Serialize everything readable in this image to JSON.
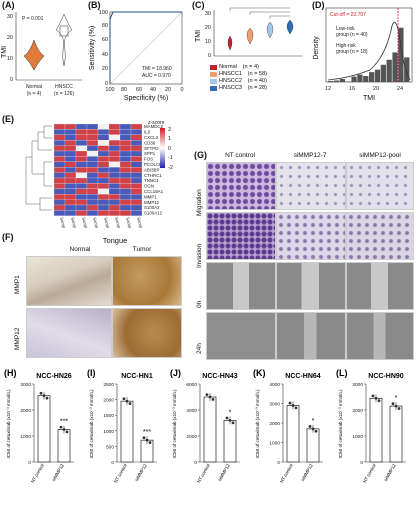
{
  "panels": {
    "A": {
      "label": "(A)",
      "ylabel": "TMI",
      "pvalue": "P = 0.001",
      "groups": [
        "Normal",
        "HNSCC"
      ],
      "n_labels": [
        "(n = 4)",
        "(n = 126)"
      ],
      "yticks": [
        "0",
        "10",
        "20",
        "30"
      ],
      "colors": {
        "normal": "#e07b3a",
        "hnscc": "#ffffff"
      }
    },
    "B": {
      "label": "(B)",
      "xlabel": "Specificity (%)",
      "ylabel": "Sensitivity (%)",
      "tmi_text": "TMI = 18.960",
      "auc_text": "AUC = 0.970",
      "xticks": [
        "100",
        "80",
        "60",
        "40",
        "20",
        "0"
      ],
      "yticks": [
        "0",
        "20",
        "40",
        "60",
        "80",
        "100"
      ]
    },
    "C": {
      "label": "(C)",
      "ylabel": "TMI",
      "yticks": [
        "0",
        "10",
        "20",
        "30"
      ],
      "legend": [
        {
          "name": "Normal",
          "n": "(n = 4)",
          "color": "#c0202a"
        },
        {
          "name": "HNSCC1",
          "n": "(n = 58)",
          "color": "#f0a070"
        },
        {
          "name": "HNSCC2",
          "n": "(n = 40)",
          "color": "#a6c8e8"
        },
        {
          "name": "HNSCC3",
          "n": "(n = 28)",
          "color": "#2e6db4"
        }
      ]
    },
    "D": {
      "label": "(D)",
      "xlabel": "TMI",
      "ylabel": "Density",
      "cutoff": "Cut-off = 23.707",
      "low": "Low-risk",
      "low_n": "group (n = 40)",
      "high": "High-risk",
      "high_n": "group (n = 18)",
      "xticks": [
        "12",
        "16",
        "20",
        "24"
      ]
    },
    "E": {
      "label": "(E)",
      "zscore": "z-score",
      "zticks": [
        "2",
        "1",
        "0",
        "-1",
        "-2"
      ],
      "genes": [
        "MAMDC2",
        "IL6",
        "CXCL2",
        "CD36",
        "SFTPD",
        "SPP1",
        "FOS",
        "PCOLCE2",
        "ABI3BP",
        "CTHRC1",
        "TNNC1",
        "OGN",
        "CCL19A1",
        "MMP1",
        "MMP12",
        "S100A2",
        "S100A12"
      ],
      "samples": [
        "Sample1",
        "Sample2",
        "Sample3",
        "Sample4",
        "Sample5",
        "Sample6",
        "Sample7",
        "Sample8"
      ]
    },
    "F": {
      "label": "(F)",
      "title": "Tongue",
      "cols": [
        "Normal",
        "Tumor"
      ],
      "rows": [
        "MMP1",
        "MMP12"
      ]
    },
    "G": {
      "label": "(G)",
      "cols": [
        "NT control",
        "siMMP12-7",
        "siMMP12-pool"
      ],
      "rows": [
        "Migration",
        "Invasion",
        "0h",
        "24h"
      ]
    },
    "H": {
      "label": "(H)",
      "title": "NCC-HN26",
      "sig": "***",
      "yticks": [
        "0",
        "1000",
        "2000",
        "3000"
      ]
    },
    "I": {
      "label": "(I)",
      "title": "NCC-HN1",
      "sig": "***",
      "yticks": [
        "0",
        "500",
        "1000",
        "1500",
        "2000",
        "2500"
      ]
    },
    "J": {
      "label": "(J)",
      "title": "NCC-HN43",
      "sig": "*",
      "yticks": [
        "0",
        "2000",
        "4000",
        "6000"
      ]
    },
    "K": {
      "label": "(K)",
      "title": "NCC-HN64",
      "sig": "*",
      "yticks": [
        "0",
        "1000",
        "2000",
        "3000",
        "4000"
      ]
    },
    "L": {
      "label": "(L)",
      "title": "NCC-HN90",
      "sig": "*",
      "yticks": [
        "0",
        "1000",
        "2000",
        "3000"
      ]
    },
    "ic50_ylabel": "IC50 of cetuximab (x10⁻³ mmol/L)",
    "bar_xticks": [
      "NT control",
      "siMMP12"
    ]
  },
  "chart_data": [
    {
      "type": "bar",
      "panel": "H",
      "title": "NCC-HN26",
      "categories": [
        "NT control",
        "siMMP12"
      ],
      "values": [
        2550,
        1250
      ],
      "ylim": [
        0,
        3000
      ]
    },
    {
      "type": "bar",
      "panel": "I",
      "title": "NCC-HN1",
      "categories": [
        "NT control",
        "siMMP12"
      ],
      "values": [
        1950,
        700
      ],
      "ylim": [
        0,
        2500
      ]
    },
    {
      "type": "bar",
      "panel": "J",
      "title": "NCC-HN43",
      "categories": [
        "NT control",
        "siMMP12"
      ],
      "values": [
        5000,
        3200
      ],
      "ylim": [
        0,
        6000
      ]
    },
    {
      "type": "bar",
      "panel": "K",
      "title": "NCC-HN64",
      "categories": [
        "NT control",
        "siMMP12"
      ],
      "values": [
        2900,
        1700
      ],
      "ylim": [
        0,
        4000
      ]
    },
    {
      "type": "bar",
      "panel": "L",
      "title": "NCC-HN90",
      "categories": [
        "NT control",
        "siMMP12"
      ],
      "values": [
        2450,
        2150
      ],
      "ylim": [
        0,
        3000
      ]
    },
    {
      "type": "line",
      "panel": "B",
      "x": [
        100,
        100,
        96,
        80,
        60,
        40,
        20,
        0
      ],
      "y": [
        0,
        90,
        100,
        100,
        100,
        100,
        100,
        100
      ],
      "xlim": [
        100,
        0
      ],
      "ylim": [
        0,
        100
      ]
    },
    {
      "type": "bar",
      "panel": "D",
      "x": [
        12,
        13,
        14,
        15,
        16,
        17,
        18,
        19,
        20,
        21,
        22,
        23,
        24,
        25
      ],
      "values": [
        0.004,
        0.006,
        0.012,
        0.002,
        0.022,
        0.03,
        0.024,
        0.04,
        0.05,
        0.07,
        0.09,
        0.12,
        0.22,
        0.1
      ],
      "ylim": [
        0,
        0.3
      ]
    }
  ]
}
